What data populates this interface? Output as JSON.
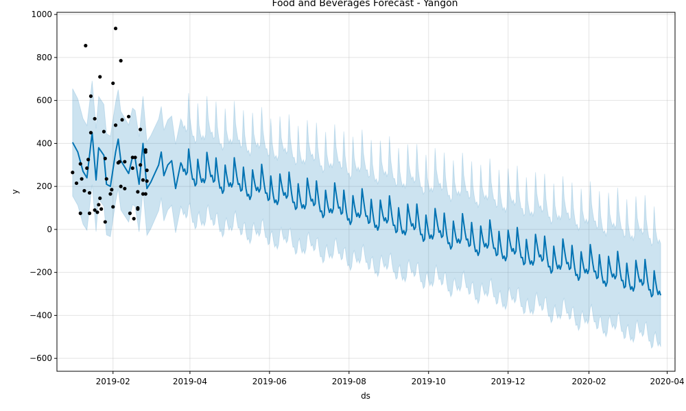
{
  "chart_data": {
    "type": "line",
    "title": "Food and Beverages Forecast - Yangon",
    "xlabel": "ds",
    "ylabel": "y",
    "x_range": [
      "2018-12-20",
      "2020-04-07"
    ],
    "ylim": [
      -660,
      1010
    ],
    "grid": true,
    "legend": "none",
    "colors": {
      "forecast": "#0072B2",
      "band": "#0072B2",
      "band_opacity": 0.2,
      "observed": "#000000"
    },
    "x_ticks": [
      "2019-02",
      "2019-04",
      "2019-06",
      "2019-08",
      "2019-10",
      "2019-12",
      "2020-02",
      "2020-04"
    ],
    "x_tick_dates": [
      "2019-02-01",
      "2019-04-01",
      "2019-06-01",
      "2019-08-01",
      "2019-10-01",
      "2019-12-01",
      "2020-02-01",
      "2020-04-01"
    ],
    "y_ticks": [
      1000,
      800,
      600,
      400,
      200,
      0,
      -200,
      -400,
      -600
    ],
    "y_tick_labels": [
      "1000",
      "800",
      "600",
      "400",
      "200",
      "0",
      "−200",
      "−400",
      "−600"
    ],
    "forecast_range": [
      "2019-01-01",
      "2020-03-27"
    ],
    "forecast_model": {
      "trend": [
        [
          "2019-01-01",
          300
        ],
        [
          "2019-04-01",
          275
        ],
        [
          "2020-03-27",
          -260
        ]
      ],
      "weekly_seasonality": [
        85,
        40,
        0,
        -30,
        -20,
        -45,
        -30
      ],
      "interval_half_width": [
        [
          "2019-01-01",
          250
        ],
        [
          "2019-04-01",
          200
        ],
        [
          "2020-03-27",
          240
        ]
      ]
    },
    "forecast_observed_period": [
      [
        "2019-01-01",
        405
      ],
      [
        "2019-01-05",
        360
      ],
      [
        "2019-01-09",
        270
      ],
      [
        "2019-01-12",
        240
      ],
      [
        "2019-01-16",
        450
      ],
      [
        "2019-01-19",
        230
      ],
      [
        "2019-01-21",
        380
      ],
      [
        "2019-01-25",
        345
      ],
      [
        "2019-01-27",
        210
      ],
      [
        "2019-01-30",
        200
      ],
      [
        "2019-02-03",
        360
      ],
      [
        "2019-02-05",
        420
      ],
      [
        "2019-02-07",
        320
      ],
      [
        "2019-02-09",
        300
      ],
      [
        "2019-02-13",
        260
      ],
      [
        "2019-02-16",
        340
      ],
      [
        "2019-02-18",
        330
      ],
      [
        "2019-02-21",
        210
      ],
      [
        "2019-02-24",
        400
      ],
      [
        "2019-02-27",
        190
      ],
      [
        "2019-03-02",
        220
      ],
      [
        "2019-03-08",
        300
      ],
      [
        "2019-03-10",
        360
      ],
      [
        "2019-03-12",
        250
      ],
      [
        "2019-03-15",
        300
      ],
      [
        "2019-03-18",
        320
      ],
      [
        "2019-03-21",
        190
      ],
      [
        "2019-03-25",
        310
      ]
    ],
    "observed": [
      [
        "2019-01-01",
        265
      ],
      [
        "2019-01-04",
        215
      ],
      [
        "2019-01-07",
        75
      ],
      [
        "2019-01-07",
        305
      ],
      [
        "2019-01-08",
        235
      ],
      [
        "2019-01-10",
        180
      ],
      [
        "2019-01-11",
        855
      ],
      [
        "2019-01-12",
        285
      ],
      [
        "2019-01-13",
        325
      ],
      [
        "2019-01-14",
        75
      ],
      [
        "2019-01-14",
        170
      ],
      [
        "2019-01-15",
        620
      ],
      [
        "2019-01-15",
        450
      ],
      [
        "2019-01-18",
        515
      ],
      [
        "2019-01-18",
        90
      ],
      [
        "2019-01-20",
        80
      ],
      [
        "2019-01-21",
        115
      ],
      [
        "2019-01-22",
        710
      ],
      [
        "2019-01-22",
        145
      ],
      [
        "2019-01-23",
        95
      ],
      [
        "2019-01-25",
        455
      ],
      [
        "2019-01-26",
        330
      ],
      [
        "2019-01-26",
        35
      ],
      [
        "2019-01-27",
        235
      ],
      [
        "2019-01-30",
        165
      ],
      [
        "2019-01-31",
        185
      ],
      [
        "2019-02-01",
        680
      ],
      [
        "2019-02-01",
        105
      ],
      [
        "2019-02-03",
        935
      ],
      [
        "2019-02-03",
        485
      ],
      [
        "2019-02-05",
        310
      ],
      [
        "2019-02-06",
        315
      ],
      [
        "2019-02-07",
        785
      ],
      [
        "2019-02-08",
        510
      ],
      [
        "2019-02-07",
        200
      ],
      [
        "2019-02-10",
        315
      ],
      [
        "2019-02-10",
        190
      ],
      [
        "2019-02-13",
        525
      ],
      [
        "2019-02-14",
        75
      ],
      [
        "2019-02-16",
        335
      ],
      [
        "2019-02-16",
        285
      ],
      [
        "2019-02-17",
        50
      ],
      [
        "2019-02-18",
        335
      ],
      [
        "2019-02-20",
        175
      ],
      [
        "2019-02-20",
        95
      ],
      [
        "2019-02-20",
        100
      ],
      [
        "2019-02-22",
        300
      ],
      [
        "2019-02-22",
        465
      ],
      [
        "2019-02-24",
        230
      ],
      [
        "2019-02-24",
        165
      ],
      [
        "2019-02-26",
        360
      ],
      [
        "2019-02-26",
        370
      ],
      [
        "2019-02-26",
        165
      ],
      [
        "2019-02-27",
        225
      ],
      [
        "2019-02-27",
        275
      ]
    ]
  }
}
